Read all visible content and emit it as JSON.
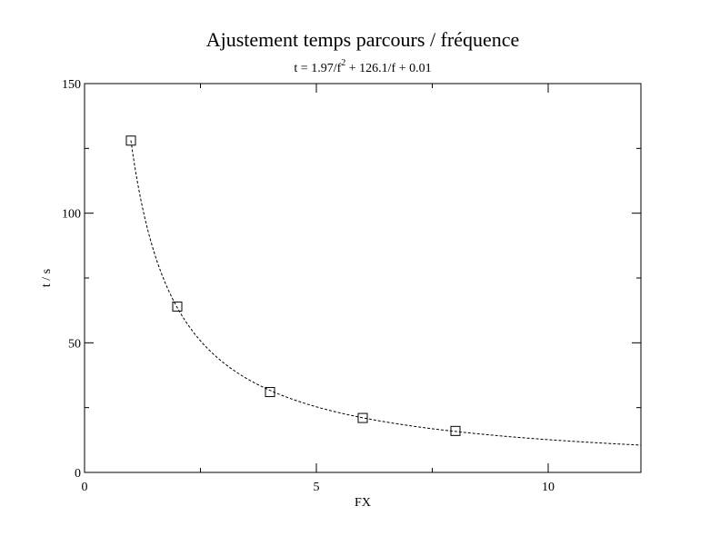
{
  "chart_data": {
    "type": "scatter",
    "title": "Ajustement temps parcours / fréquence",
    "subtitle_parts": [
      "t = 1.97/f",
      "2",
      " + 126.1/f  + 0.01"
    ],
    "xlabel": "FX",
    "ylabel": "t / s",
    "xlim": [
      0,
      12
    ],
    "ylim": [
      0,
      150
    ],
    "x_ticks": [
      0,
      5,
      10
    ],
    "y_ticks": [
      0,
      50,
      100,
      150
    ],
    "x_minor_ticks": [
      2.5,
      7.5
    ],
    "y_minor_ticks": [
      25,
      75,
      125
    ],
    "grid": false,
    "series": [
      {
        "marker": "square",
        "x": [
          1,
          2,
          4,
          6,
          8
        ],
        "y": [
          128,
          64,
          31,
          21,
          16
        ]
      }
    ],
    "fit": {
      "style": "dashed",
      "a": 1.97,
      "b": 126.1,
      "c": 0.01,
      "x_range": [
        1,
        12
      ]
    }
  }
}
